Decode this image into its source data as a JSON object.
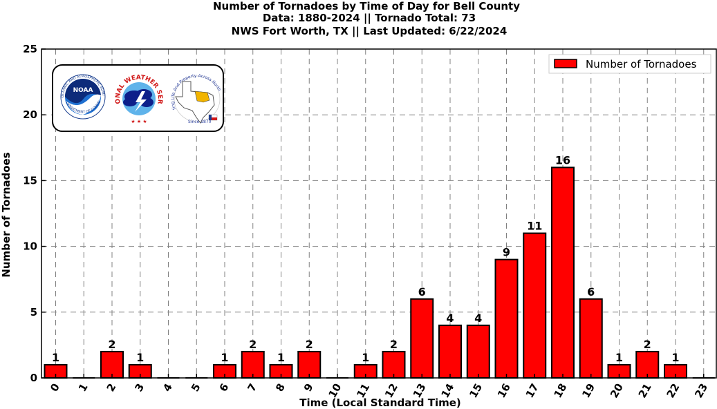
{
  "chart_data": {
    "type": "bar",
    "title_lines": [
      "Number of Tornadoes by Time of Day for Bell County",
      "Data: 1880-2024 || Tornado Total: 73",
      "NWS Fort Worth, TX || Last Updated: 6/22/2024"
    ],
    "xlabel": "Time (Local Standard Time)",
    "ylabel": "Number of Tornadoes",
    "categories": [
      "0",
      "1",
      "2",
      "3",
      "4",
      "5",
      "6",
      "7",
      "8",
      "9",
      "10",
      "11",
      "12",
      "13",
      "14",
      "15",
      "16",
      "17",
      "18",
      "19",
      "20",
      "21",
      "22",
      "23"
    ],
    "series": [
      {
        "name": "Number of Tornadoes",
        "color": "#ff0000",
        "values": [
          1,
          0,
          2,
          1,
          0,
          0,
          1,
          2,
          1,
          2,
          0,
          1,
          2,
          6,
          4,
          4,
          9,
          11,
          16,
          6,
          1,
          2,
          1,
          0
        ]
      }
    ],
    "ylim": [
      0,
      25
    ],
    "yticks": [
      0,
      5,
      10,
      15,
      20,
      25
    ],
    "grid": true,
    "legend_position": "top-right",
    "bar_color": "#ff0000",
    "bar_edge_color": "#000000"
  },
  "logos": {
    "noaa": "NOAA",
    "nws_text": "NATIONAL WEATHER SERVICE",
    "fw_text": "Protecting Life And Property Across North Texas",
    "since": "Since 1870",
    "noaa_ring": "NATIONAL OCEANIC AND ATMOSPHERIC ADMINISTRATION",
    "noaa_ring_bottom": "U.S. DEPARTMENT OF COMMERCE"
  }
}
